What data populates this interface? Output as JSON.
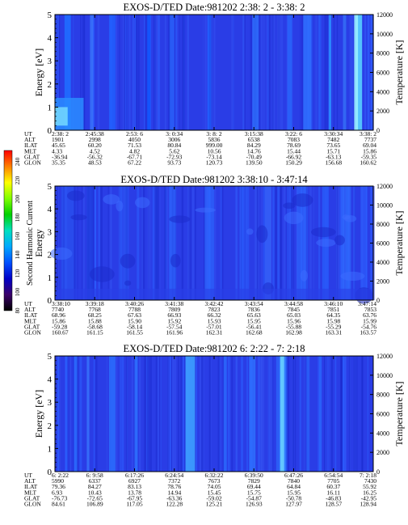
{
  "colorbar": {
    "ticks": [
      "240",
      "220",
      "200",
      "180",
      "160",
      "140",
      "120",
      "100",
      "80"
    ],
    "stops": [
      "#000000",
      "#3a006a",
      "#0000c8",
      "#0050ff",
      "#00a8ff",
      "#00e0c0",
      "#00d000",
      "#80ff00",
      "#ffff00",
      "#ff8000",
      "#ff0000"
    ]
  },
  "row_labels": [
    "UT",
    "ALT",
    "ILAT",
    "MLT",
    "GLAT",
    "GLON"
  ],
  "panels": [
    {
      "title": "EXOS-D/TED   Date:981202  2:38: 2 - 3:38: 2",
      "ylabel": "Energy [eV]",
      "ylabel2": "",
      "right_label": "Temperature [K]",
      "left_ticks": [
        "0",
        "1",
        "2",
        "3",
        "4",
        "5"
      ],
      "right_ticks": [
        "0",
        "2000",
        "4000",
        "6000",
        "8000",
        "10000",
        "12000"
      ],
      "columns": [
        {
          "UT": "2:38: 2",
          "ALT": "1901",
          "ILAT": "45.65",
          "MLT": "4.33",
          "GLAT": "-36.94",
          "GLON": "35.35"
        },
        {
          "UT": "2:45:38",
          "ALT": "2998",
          "ILAT": "60.20",
          "MLT": "4.52",
          "GLAT": "-56.32",
          "GLON": "48.53"
        },
        {
          "UT": "2:53: 6",
          "ALT": "4050",
          "ILAT": "71.53",
          "MLT": "4.82",
          "GLAT": "-67.71",
          "GLON": "67.22"
        },
        {
          "UT": "3: 0:34",
          "ALT": "3006",
          "ILAT": "80.84",
          "MLT": "5.62",
          "GLAT": "-72.93",
          "GLON": "93.73"
        },
        {
          "UT": "3: 8: 2",
          "ALT": "5836",
          "ILAT": "999.00",
          "MLT": "10.56",
          "GLAT": "-73.14",
          "GLON": "120.73"
        },
        {
          "UT": "3:15:38",
          "ALT": "6538",
          "ILAT": "84.29",
          "MLT": "14.76",
          "GLAT": "-70.49",
          "GLON": "139.50"
        },
        {
          "UT": "3:22: 6",
          "ALT": "7083",
          "ILAT": "78.69",
          "MLT": "15.44",
          "GLAT": "-66.92",
          "GLON": "150.29"
        },
        {
          "UT": "3:30:34",
          "ALT": "7482",
          "ILAT": "73.65",
          "MLT": "15.71",
          "GLAT": "-63.13",
          "GLON": "156.68"
        },
        {
          "UT": "3:38: 2",
          "ALT": "7737",
          "ILAT": "69.04",
          "MLT": "15.86",
          "GLAT": "-59.35",
          "GLON": "160.62"
        }
      ]
    },
    {
      "title": "EXOS-D/TED   Date:981202  3:38:10 - 3:47:14",
      "ylabel": "Energy",
      "ylabel2": "Second Harmonic Current",
      "right_label": "Temperature [K]",
      "left_ticks": [
        "0",
        "1",
        "2",
        "3",
        "4",
        "5"
      ],
      "right_ticks": [
        "0",
        "2000",
        "4000",
        "6000",
        "8000",
        "10000",
        "12000"
      ],
      "columns": [
        {
          "UT": "3:38:10",
          "ALT": "7740",
          "ILAT": "68.96",
          "MLT": "15.86",
          "GLAT": "-59.28",
          "GLON": "160.67"
        },
        {
          "UT": "3:39:18",
          "ALT": "7768",
          "ILAT": "68.25",
          "MLT": "15.88",
          "GLAT": "-58.68",
          "GLON": "161.15"
        },
        {
          "UT": "3:40:26",
          "ALT": "7788",
          "ILAT": "67.63",
          "MLT": "15.90",
          "GLAT": "-58.14",
          "GLON": "161.55"
        },
        {
          "UT": "3:41:38",
          "ALT": "7809",
          "ILAT": "66.93",
          "MLT": "15.92",
          "GLAT": "-57.54",
          "GLON": "161.96"
        },
        {
          "UT": "3:42:42",
          "ALT": "7823",
          "ILAT": "66.32",
          "MLT": "15.93",
          "GLAT": "-57.01",
          "GLON": "162.31"
        },
        {
          "UT": "3:43:54",
          "ALT": "7836",
          "ILAT": "65.63",
          "MLT": "15.95",
          "GLAT": "-56.41",
          "GLON": "162.68"
        },
        {
          "UT": "3:44:58",
          "ALT": "7845",
          "ILAT": "65.03",
          "MLT": "15.96",
          "GLAT": "-55.88",
          "GLON": "162.98"
        },
        {
          "UT": "3:46:10",
          "ALT": "7851",
          "ILAT": "64.35",
          "MLT": "15.98",
          "GLAT": "-55.29",
          "GLON": "163.31"
        },
        {
          "UT": "3:47:14",
          "ALT": "7853",
          "ILAT": "63.76",
          "MLT": "15.99",
          "GLAT": "-54.76",
          "GLON": "163.57"
        }
      ]
    },
    {
      "title": "EXOS-D/TED   Date:981202  6: 2:22 - 7: 2:18",
      "ylabel": "Energy [eV]",
      "ylabel2": "",
      "right_label": "Temperature [K]",
      "left_ticks": [
        "0",
        "1",
        "2",
        "3",
        "4",
        "5"
      ],
      "right_ticks": [
        "0",
        "2000",
        "4000",
        "6000",
        "8000",
        "10000",
        "12000"
      ],
      "columns": [
        {
          "UT": "6: 2:22",
          "ALT": "5990",
          "ILAT": "79.36",
          "MLT": "6.93",
          "GLAT": "-76.73",
          "GLON": "84.61"
        },
        {
          "UT": "6: 9:58",
          "ALT": "6337",
          "ILAT": "84.27",
          "MLT": "10.43",
          "GLAT": "-72.65",
          "GLON": "106.89"
        },
        {
          "UT": "6:17:26",
          "ALT": "6927",
          "ILAT": "83.13",
          "MLT": "13.78",
          "GLAT": "-67.95",
          "GLON": "117.05"
        },
        {
          "UT": "6:24:54",
          "ALT": "7372",
          "ILAT": "78.76",
          "MLT": "14.94",
          "GLAT": "-63.36",
          "GLON": "122.28"
        },
        {
          "UT": "6:32:22",
          "ALT": "7673",
          "ILAT": "74.05",
          "MLT": "15.45",
          "GLAT": "-59.02",
          "GLON": "125.21"
        },
        {
          "UT": "6:39:50",
          "ALT": "7829",
          "ILAT": "69.44",
          "MLT": "15.75",
          "GLAT": "-54.87",
          "GLON": "126.93"
        },
        {
          "UT": "6:47:26",
          "ALT": "7840",
          "ILAT": "64.84",
          "MLT": "15.95",
          "GLAT": "-50.78",
          "GLON": "127.97"
        },
        {
          "UT": "6:54:54",
          "ALT": "7705",
          "ILAT": "60.37",
          "MLT": "16.11",
          "GLAT": "-46.83",
          "GLON": "128.57"
        },
        {
          "UT": "7: 2:18",
          "ALT": "7430",
          "ILAT": "55.92",
          "MLT": "16.25",
          "GLAT": "-42.95",
          "GLON": "128.94"
        }
      ]
    }
  ],
  "chart_data": [
    {
      "type": "heatmap",
      "title": "EXOS-D/TED   Date:981202  2:38: 2 - 3:38: 2",
      "ylabel": "Energy [eV]",
      "y2label": "Temperature [K]",
      "ylim": [
        0,
        5
      ],
      "y2lim": [
        0,
        12000
      ],
      "x": [
        "2:38: 2",
        "2:45:38",
        "2:53: 6",
        "3: 0:34",
        "3: 8: 2",
        "3:15:38",
        "3:22: 6",
        "3:30:34",
        "3:38: 2"
      ],
      "colormap_range": [
        80,
        240
      ]
    },
    {
      "type": "heatmap",
      "title": "EXOS-D/TED   Date:981202  3:38:10 - 3:47:14",
      "ylabel": "Energy",
      "y2label": "Temperature [K]",
      "ylim": [
        0,
        5
      ],
      "y2lim": [
        0,
        12000
      ],
      "x": [
        "3:38:10",
        "3:39:18",
        "3:40:26",
        "3:41:38",
        "3:42:42",
        "3:43:54",
        "3:44:58",
        "3:46:10",
        "3:47:14"
      ],
      "colormap_range": [
        80,
        240
      ]
    },
    {
      "type": "heatmap",
      "title": "EXOS-D/TED   Date:981202  6: 2:22 - 7: 2:18",
      "ylabel": "Energy [eV]",
      "y2label": "Temperature [K]",
      "ylim": [
        0,
        5
      ],
      "y2lim": [
        0,
        12000
      ],
      "x": [
        "6: 2:22",
        "6: 9:58",
        "6:17:26",
        "6:24:54",
        "6:32:22",
        "6:39:50",
        "6:47:26",
        "6:54:54",
        "7: 2:18"
      ],
      "colormap_range": [
        80,
        240
      ]
    }
  ]
}
